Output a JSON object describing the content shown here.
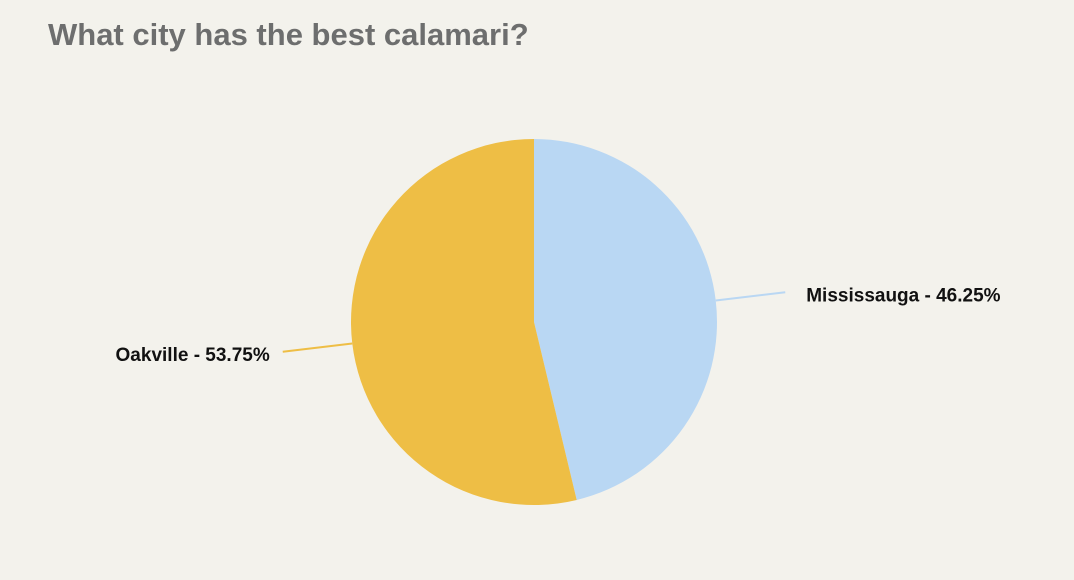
{
  "chart_data": {
    "type": "pie",
    "title": "What city has the best calamari?",
    "series": [
      {
        "name": "Mississauga",
        "color": "#b9d7f3",
        "values": [
          46.25
        ],
        "value_labels": [
          "Mississauga - 46.25%"
        ]
      },
      {
        "name": "Oakville",
        "color": "#eebe45",
        "values": [
          53.75
        ],
        "value_labels": [
          "Oakville - 53.75%"
        ]
      }
    ]
  }
}
